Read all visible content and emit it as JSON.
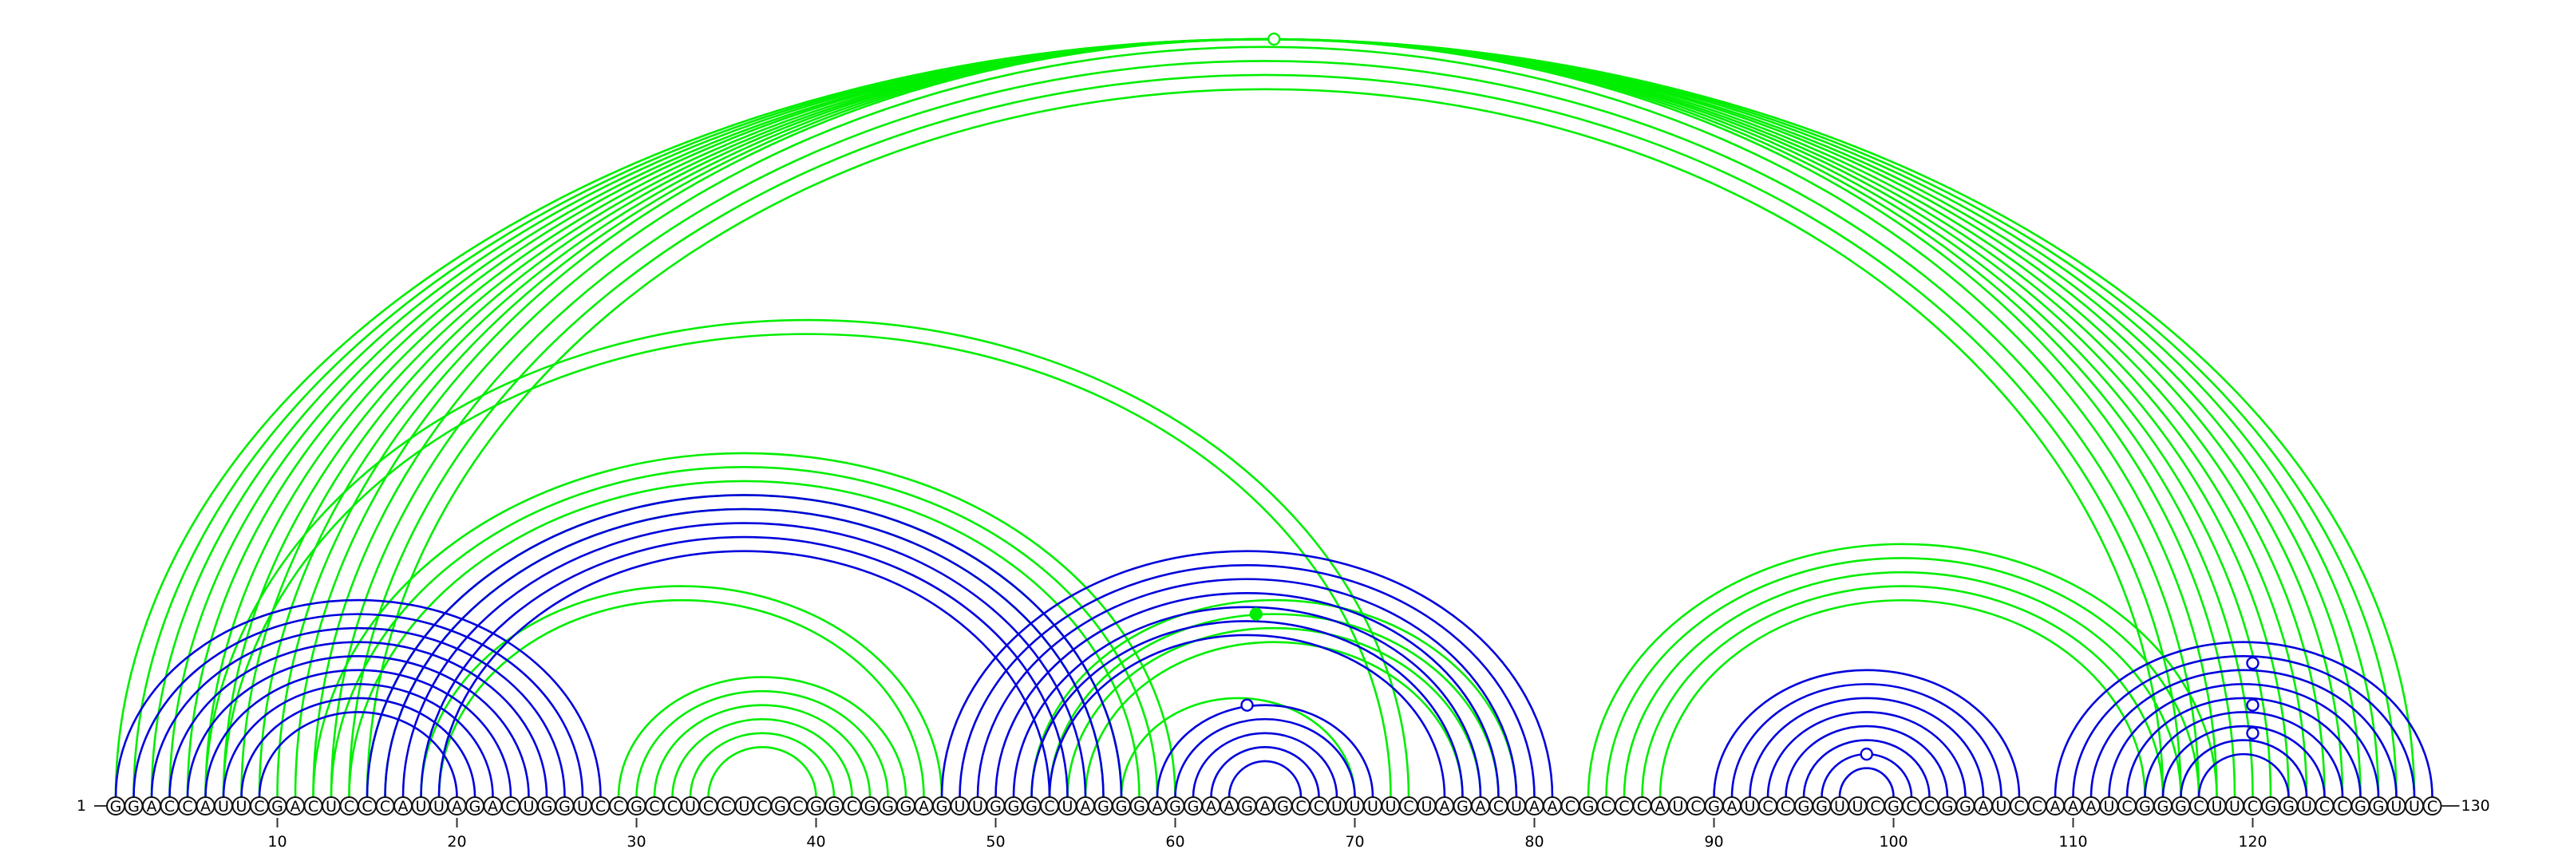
{
  "diagram": {
    "sequence": "GGACCAUUCGACUCCCAUUAGACUGGUCCGCCUCCUCGCGGCGGGAGUUGGGCUAGGGAGGAAGAGCCUUUUCUAGACUAACGCCCAUCGAUCCGGUUCGCCGGAUCCAAAUCGGGCUUCGGUCCGGUUC",
    "start_label": "1",
    "end_label": "130",
    "tick_labels": [
      "10",
      "20",
      "30",
      "40",
      "50",
      "60",
      "70",
      "80",
      "90",
      "100",
      "110",
      "120"
    ],
    "colors": {
      "green": "#00ee00",
      "blue": "#0000dd"
    }
  },
  "chart_data": {
    "type": "arc",
    "length": 130,
    "ticks": [
      10,
      20,
      30,
      40,
      50,
      60,
      70,
      80,
      90,
      100,
      110,
      120
    ],
    "arcs_green": [
      [
        1,
        129
      ],
      [
        2,
        128
      ],
      [
        3,
        127
      ],
      [
        4,
        126
      ],
      [
        5,
        125
      ],
      [
        6,
        124
      ],
      [
        7,
        123
      ],
      [
        8,
        122
      ],
      [
        9,
        121
      ],
      [
        10,
        120
      ],
      [
        11,
        119
      ],
      [
        12,
        118
      ],
      [
        13,
        117
      ],
      [
        14,
        116
      ],
      [
        15,
        115
      ],
      [
        6,
        73
      ],
      [
        7,
        72
      ],
      [
        12,
        60
      ],
      [
        13,
        59
      ],
      [
        14,
        58
      ],
      [
        15,
        57
      ],
      [
        16,
        56
      ],
      [
        18,
        47
      ],
      [
        19,
        46
      ],
      [
        29,
        45
      ],
      [
        30,
        44
      ],
      [
        31,
        43
      ],
      [
        32,
        42
      ],
      [
        33,
        41
      ],
      [
        34,
        40
      ],
      [
        52,
        79
      ],
      [
        53,
        78
      ],
      [
        54,
        77
      ],
      [
        55,
        76
      ],
      [
        57,
        70
      ],
      [
        83,
        118
      ],
      [
        84,
        117
      ],
      [
        85,
        116
      ],
      [
        86,
        115
      ],
      [
        87,
        114
      ]
    ],
    "arcs_blue": [
      [
        1,
        28
      ],
      [
        2,
        27
      ],
      [
        3,
        26
      ],
      [
        4,
        25
      ],
      [
        5,
        24
      ],
      [
        6,
        23
      ],
      [
        7,
        22
      ],
      [
        8,
        21
      ],
      [
        9,
        20
      ],
      [
        15,
        57
      ],
      [
        16,
        56
      ],
      [
        17,
        55
      ],
      [
        18,
        54
      ],
      [
        19,
        53
      ],
      [
        47,
        81
      ],
      [
        48,
        80
      ],
      [
        49,
        79
      ],
      [
        50,
        78
      ],
      [
        51,
        77
      ],
      [
        52,
        76
      ],
      [
        53,
        75
      ],
      [
        59,
        71
      ],
      [
        60,
        70
      ],
      [
        61,
        69
      ],
      [
        62,
        68
      ],
      [
        63,
        67
      ],
      [
        90,
        107
      ],
      [
        91,
        106
      ],
      [
        92,
        105
      ],
      [
        93,
        104
      ],
      [
        94,
        103
      ],
      [
        95,
        102
      ],
      [
        96,
        101
      ],
      [
        97,
        100
      ],
      [
        109,
        130
      ],
      [
        110,
        129
      ],
      [
        111,
        128
      ],
      [
        112,
        127
      ],
      [
        113,
        126
      ],
      [
        114,
        125
      ],
      [
        115,
        124
      ],
      [
        116,
        123
      ],
      [
        117,
        122
      ]
    ],
    "markers": [
      {
        "pos": 65.5,
        "arc": [
          1,
          130
        ],
        "color": "green",
        "filled": false
      },
      {
        "pos": 64.5,
        "arc": [
          52,
          77
        ],
        "color": "green",
        "filled": true
      },
      {
        "pos": 64.0,
        "arc": [
          58,
          70
        ],
        "color": "blue",
        "filled": false
      },
      {
        "pos": 120.0,
        "arc": [
          111,
          129
        ],
        "color": "blue",
        "filled": false
      },
      {
        "pos": 120.0,
        "arc": [
          114,
          126
        ],
        "color": "blue",
        "filled": false
      },
      {
        "pos": 120.0,
        "arc": [
          116,
          124
        ],
        "color": "blue",
        "filled": false
      },
      {
        "pos": 98.5,
        "arc": [
          96,
          101
        ],
        "color": "blue",
        "filled": false
      }
    ]
  }
}
